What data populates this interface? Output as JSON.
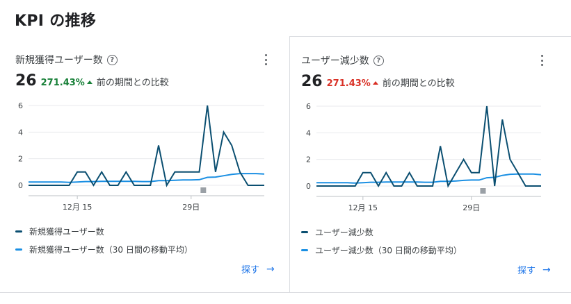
{
  "section_title": "KPI の推移",
  "explore_label": "探す",
  "cards": [
    {
      "title": "新規獲得ユーザー数",
      "value": "26",
      "change": "271.43%",
      "change_direction": "up",
      "change_color": "#188038",
      "compare_label": "前の期間との比較",
      "legend": [
        {
          "label": "新規獲得ユーザー数",
          "color": "#0b4f71"
        },
        {
          "label": "新規獲得ユーザー数（30 日間の移動平均）",
          "color": "#1a8fe3"
        }
      ]
    },
    {
      "title": "ユーザー減少数",
      "value": "26",
      "change": "271.43%",
      "change_direction": "down",
      "change_color": "#d93025",
      "compare_label": "前の期間との比較",
      "legend": [
        {
          "label": "ユーザー減少数",
          "color": "#0b4f71"
        },
        {
          "label": "ユーザー減少数（30 日間の移動平均）",
          "color": "#1a8fe3"
        }
      ]
    }
  ],
  "chart_data": [
    {
      "type": "line",
      "x_tick_labels": [
        "12月 15",
        "29日"
      ],
      "y_ticks": [
        0,
        2,
        4,
        6
      ],
      "ylim": [
        0,
        6
      ],
      "grid": true,
      "legend_position": "bottom",
      "series": [
        {
          "name": "新規獲得ユーザー数",
          "color": "#0b4f71",
          "values": [
            0,
            0,
            0,
            0,
            0,
            0,
            1,
            1,
            0,
            1,
            0,
            0,
            1,
            0,
            0,
            0,
            3,
            0,
            1,
            1,
            1,
            1,
            6,
            1,
            4,
            3,
            1,
            0,
            0,
            0
          ]
        },
        {
          "name": "新規獲得ユーザー数（30 日間の移動平均）",
          "color": "#1a8fe3",
          "values": [
            0.25,
            0.25,
            0.25,
            0.25,
            0.25,
            0.22,
            0.25,
            0.28,
            0.28,
            0.3,
            0.3,
            0.3,
            0.3,
            0.3,
            0.28,
            0.28,
            0.35,
            0.35,
            0.38,
            0.4,
            0.4,
            0.42,
            0.6,
            0.62,
            0.72,
            0.82,
            0.88,
            0.88,
            0.88,
            0.85
          ]
        }
      ]
    },
    {
      "type": "line",
      "x_tick_labels": [
        "12月 15",
        "29日"
      ],
      "y_ticks": [
        0,
        2,
        4,
        6
      ],
      "ylim": [
        0,
        6
      ],
      "grid": true,
      "legend_position": "bottom",
      "series": [
        {
          "name": "ユーザー減少数",
          "color": "#0b4f71",
          "values": [
            0,
            0,
            0,
            0,
            0,
            0,
            1,
            1,
            0,
            1,
            0,
            0,
            1,
            0,
            0,
            0,
            3,
            0,
            1,
            2,
            1,
            1,
            6,
            0,
            5,
            2,
            1,
            0,
            0,
            0
          ]
        },
        {
          "name": "ユーザー減少数（30 日間の移動平均）",
          "color": "#1a8fe3",
          "values": [
            0.25,
            0.25,
            0.25,
            0.25,
            0.25,
            0.22,
            0.25,
            0.28,
            0.28,
            0.3,
            0.3,
            0.3,
            0.3,
            0.3,
            0.28,
            0.28,
            0.35,
            0.35,
            0.38,
            0.42,
            0.45,
            0.45,
            0.62,
            0.65,
            0.8,
            0.88,
            0.9,
            0.9,
            0.9,
            0.85
          ]
        }
      ]
    }
  ]
}
